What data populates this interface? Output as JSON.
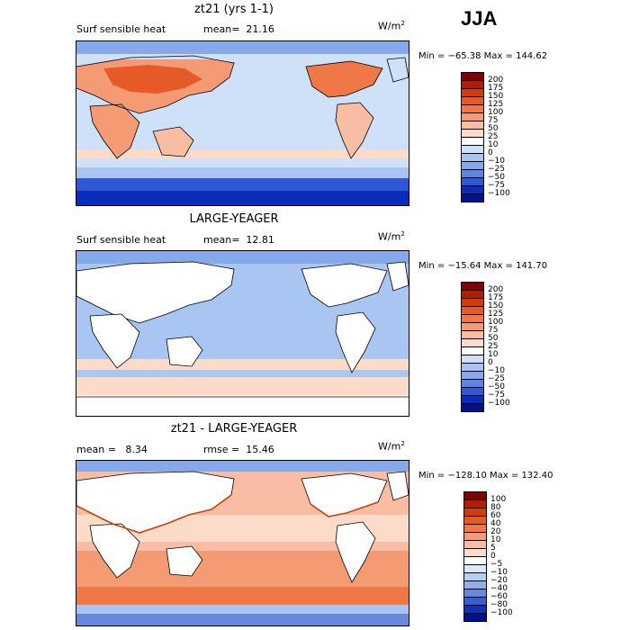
{
  "season": "JJA",
  "panels": [
    {
      "title": "zt21 (yrs 1-1)",
      "stat_left": "Surf sensible heat",
      "stat_right": "mean=  21.16",
      "units_base": "W/m",
      "units_exp": "2",
      "minmax": "Min = −65.38 Max = 144.62",
      "colorbar": {
        "labels": [
          "200",
          "175",
          "150",
          "125",
          "100",
          "75",
          "50",
          "25",
          "10",
          "0",
          "−10",
          "−25",
          "−50",
          "−75",
          "−100"
        ],
        "colors": [
          "#7f0000",
          "#b01e00",
          "#d23c0a",
          "#e65a28",
          "#f07846",
          "#f59b73",
          "#f9bda3",
          "#fcdcc8",
          "#ffffff",
          "#cfe1f8",
          "#a9c6f2",
          "#86a9ec",
          "#5d86e4",
          "#2f57d6",
          "#0b2bbb",
          "#00128a"
        ]
      },
      "ocean_tint": "#cfe1f8"
    },
    {
      "title": "LARGE-YEAGER",
      "stat_left": "Surf sensible heat",
      "stat_right": "mean=  12.81",
      "units_base": "W/m",
      "units_exp": "2",
      "minmax": "Min = −15.64 Max = 141.70",
      "colorbar": {
        "labels": [
          "200",
          "175",
          "150",
          "125",
          "100",
          "75",
          "50",
          "25",
          "10",
          "0",
          "−10",
          "−25",
          "−50",
          "−75",
          "−100"
        ],
        "colors": [
          "#7f0000",
          "#b01e00",
          "#d23c0a",
          "#e65a28",
          "#f07846",
          "#f59b73",
          "#f9bda3",
          "#fcdcc8",
          "#ffffff",
          "#cfe1f8",
          "#a9c6f2",
          "#86a9ec",
          "#5d86e4",
          "#2f57d6",
          "#0b2bbb",
          "#00128a"
        ]
      },
      "ocean_tint": "#cfe1f8"
    },
    {
      "title": "zt21 - LARGE-YEAGER",
      "stat_left": "mean =   8.34",
      "stat_right": "rmse =  15.46",
      "units_base": "W/m",
      "units_exp": "2",
      "minmax": "Min = −128.10 Max = 132.40",
      "colorbar": {
        "labels": [
          "100",
          "80",
          "60",
          "40",
          "20",
          "10",
          "5",
          "0",
          "−5",
          "−10",
          "−20",
          "−40",
          "−60",
          "−80",
          "−100"
        ],
        "colors": [
          "#7f0000",
          "#b01e00",
          "#d23c0a",
          "#e65a28",
          "#f07846",
          "#f59b73",
          "#f9bda3",
          "#fcdcc8",
          "#ffffff",
          "#dde8f8",
          "#b9cff2",
          "#91b0ea",
          "#6689df",
          "#3a5dd0",
          "#1431b4",
          "#00128a"
        ]
      },
      "ocean_tint": "#f5b59a"
    }
  ]
}
